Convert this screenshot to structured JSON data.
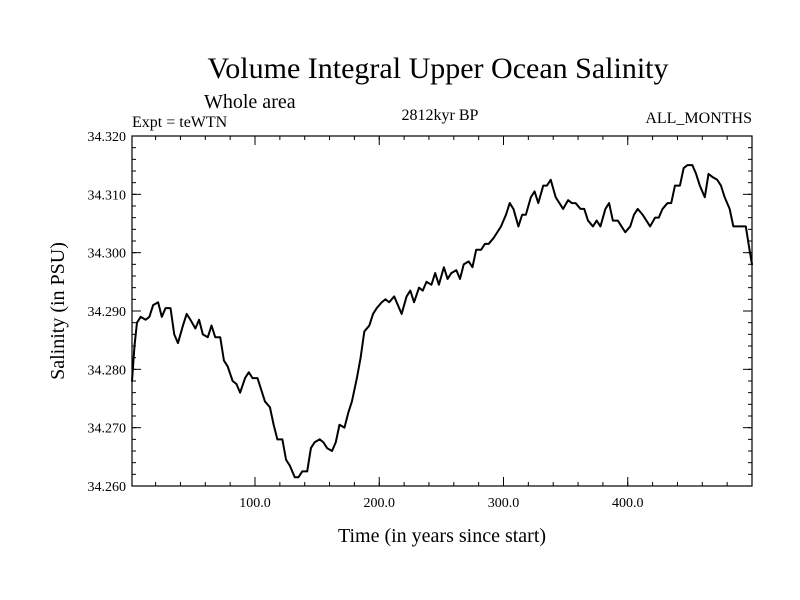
{
  "chart_data": {
    "type": "line",
    "title": "Volume Integral Upper Ocean Salinity",
    "subtitle": "Whole area",
    "annotations": {
      "experiment": "Expt = teWTN",
      "period": "2812kyr BP",
      "months": "ALL_MONTHS"
    },
    "xlabel": "Time (in years since start)",
    "ylabel": "Salinity (in PSU)",
    "xlim": [
      1,
      500
    ],
    "ylim": [
      34.26,
      34.32
    ],
    "x_ticks": [
      100,
      200,
      300,
      400
    ],
    "x_tick_labels": [
      "100.0",
      "200.0",
      "300.0",
      "400.0"
    ],
    "y_ticks": [
      34.26,
      34.27,
      34.28,
      34.29,
      34.3,
      34.31,
      34.32
    ],
    "y_tick_labels": [
      "34.260",
      "34.270",
      "34.280",
      "34.290",
      "34.300",
      "34.310",
      "34.320"
    ],
    "series": [
      {
        "name": "Salinity",
        "x": [
          1,
          3,
          5,
          8,
          12,
          15,
          18,
          22,
          25,
          28,
          32,
          35,
          38,
          42,
          45,
          48,
          52,
          55,
          58,
          62,
          65,
          68,
          72,
          75,
          78,
          82,
          85,
          88,
          92,
          95,
          98,
          102,
          105,
          108,
          112,
          115,
          118,
          122,
          125,
          128,
          132,
          135,
          138,
          142,
          145,
          148,
          152,
          155,
          158,
          162,
          165,
          168,
          172,
          175,
          178,
          182,
          185,
          188,
          192,
          195,
          198,
          202,
          205,
          208,
          212,
          215,
          218,
          222,
          225,
          228,
          232,
          235,
          238,
          242,
          245,
          248,
          252,
          255,
          258,
          262,
          265,
          268,
          272,
          275,
          278,
          282,
          285,
          288,
          292,
          295,
          298,
          302,
          305,
          308,
          312,
          315,
          318,
          322,
          325,
          328,
          332,
          335,
          338,
          342,
          345,
          348,
          352,
          355,
          358,
          362,
          365,
          368,
          372,
          375,
          378,
          382,
          385,
          388,
          392,
          395,
          398,
          402,
          405,
          408,
          412,
          415,
          418,
          422,
          425,
          428,
          432,
          435,
          438,
          442,
          445,
          448,
          452,
          455,
          458,
          462,
          465,
          468,
          472,
          475,
          478,
          482,
          485,
          488,
          492,
          495,
          498,
          500
        ],
        "values": [
          34.278,
          34.284,
          34.288,
          34.289,
          34.2885,
          34.289,
          34.291,
          34.2915,
          34.289,
          34.2905,
          34.2905,
          34.286,
          34.2845,
          34.2875,
          34.2895,
          34.2885,
          34.287,
          34.2885,
          34.286,
          34.2855,
          34.2875,
          34.2855,
          34.2855,
          34.2815,
          34.2805,
          34.278,
          34.2775,
          34.276,
          34.2785,
          34.2795,
          34.2785,
          34.2785,
          34.2765,
          34.2745,
          34.2735,
          34.2705,
          34.268,
          34.268,
          34.2645,
          34.2635,
          34.2615,
          34.2615,
          34.2625,
          34.2625,
          34.2665,
          34.2675,
          34.268,
          34.2675,
          34.2665,
          34.266,
          34.2675,
          34.2705,
          34.27,
          34.2725,
          34.2745,
          34.2785,
          34.282,
          34.2865,
          34.2875,
          34.2895,
          34.2905,
          34.2915,
          34.292,
          34.2915,
          34.2925,
          34.291,
          34.2895,
          34.2925,
          34.2935,
          34.2915,
          34.294,
          34.2935,
          34.295,
          34.2945,
          34.2965,
          34.2945,
          34.2975,
          34.2955,
          34.2965,
          34.297,
          34.2955,
          34.298,
          34.2985,
          34.2975,
          34.3005,
          34.3005,
          34.3015,
          34.3015,
          34.3025,
          34.3035,
          34.3045,
          34.3065,
          34.3085,
          34.3075,
          34.3045,
          34.3065,
          34.3065,
          34.3095,
          34.3105,
          34.3085,
          34.3115,
          34.3115,
          34.3125,
          34.3095,
          34.3085,
          34.3075,
          34.309,
          34.3085,
          34.3085,
          34.3075,
          34.3075,
          34.3055,
          34.3045,
          34.3055,
          34.3045,
          34.3075,
          34.3085,
          34.3055,
          34.3055,
          34.3045,
          34.3035,
          34.3045,
          34.3065,
          34.3075,
          34.3065,
          34.3055,
          34.3045,
          34.306,
          34.306,
          34.3075,
          34.3085,
          34.3085,
          34.3115,
          34.3115,
          34.3145,
          34.315,
          34.315,
          34.3135,
          34.3115,
          34.3095,
          34.3135,
          34.313,
          34.3125,
          34.3115,
          34.3095,
          34.3075,
          34.3045,
          34.3045,
          34.3045,
          34.3045,
          34.3005,
          34.298
        ]
      }
    ]
  }
}
